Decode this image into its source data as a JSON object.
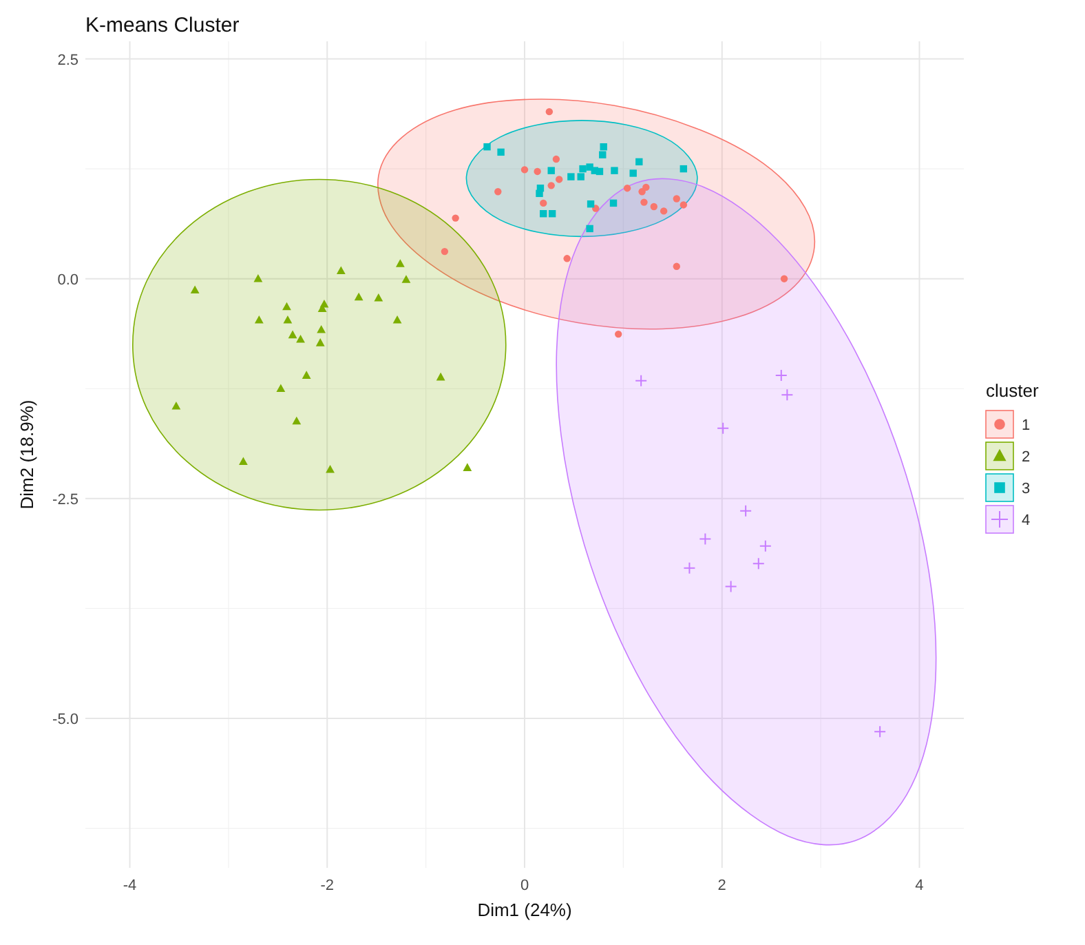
{
  "chart_data": {
    "type": "scatter",
    "title": "K-means Cluster",
    "xlabel": "Dim1 (24%)",
    "ylabel": "Dim2 (18.9%)",
    "legend_title": "cluster",
    "legend": "right",
    "grid": true,
    "xlim": [
      -4.45,
      4.45
    ],
    "ylim": [
      -6.7,
      2.7
    ],
    "xticks": [
      -4,
      -2,
      0,
      2,
      4
    ],
    "yticks": [
      {
        "value": 2.5,
        "label": "2.5"
      },
      {
        "value": 0,
        "label": "0.0"
      },
      {
        "value": -2.5,
        "label": "-2.5"
      },
      {
        "value": -5,
        "label": "-5.0"
      }
    ],
    "series": [
      {
        "type": "area",
        "color": "#f8766d",
        "x": [
          2.93,
          2.69,
          2.15,
          1.4,
          0.54,
          -0.29,
          -0.96,
          -1.38,
          -1.48,
          -1.24,
          -0.7,
          0.05,
          0.91,
          1.74,
          2.42,
          2.84
        ],
        "values": [
          0.31,
          -0.13,
          -0.44,
          -0.57,
          -0.5,
          -0.24,
          0.17,
          0.66,
          1.17,
          1.61,
          1.92,
          2.04,
          1.97,
          1.71,
          1.31,
          0.81
        ]
      },
      {
        "type": "area",
        "color": "#7cae00",
        "x": [
          -0.19,
          -0.33,
          -0.74,
          -1.36,
          -2.08,
          -2.8,
          -3.42,
          -3.83,
          -3.97,
          -3.83,
          -3.42,
          -2.8,
          -2.08,
          -1.36,
          -0.74,
          -0.33
        ],
        "values": [
          -0.75,
          -0.03,
          0.58,
          0.99,
          1.13,
          0.99,
          0.58,
          -0.03,
          -0.75,
          -1.47,
          -2.08,
          -2.49,
          -2.63,
          -2.49,
          -2.08,
          -1.47
        ]
      },
      {
        "type": "area",
        "color": "#00bfc4",
        "x": [
          1.75,
          1.66,
          1.41,
          1.03,
          0.58,
          0.13,
          -0.25,
          -0.5,
          -0.59,
          -0.5,
          -0.25,
          0.13,
          0.58,
          1.03,
          1.41,
          1.66
        ],
        "values": [
          1.14,
          1.39,
          1.61,
          1.75,
          1.8,
          1.75,
          1.61,
          1.39,
          1.14,
          0.89,
          0.67,
          0.53,
          0.48,
          0.53,
          0.67,
          0.89
        ]
      },
      {
        "type": "area",
        "color": "#c77cff",
        "x": [
          3.35,
          2.67,
          1.91,
          1.21,
          0.67,
          0.37,
          0.35,
          0.62,
          1.13,
          1.82,
          2.57,
          3.27,
          3.81,
          4.12,
          4.14,
          3.87
        ],
        "values": [
          -6.39,
          -6.34,
          -5.72,
          -4.64,
          -3.26,
          -1.78,
          -0.43,
          0.57,
          1.09,
          1.04,
          0.43,
          -0.66,
          -2.04,
          -3.52,
          -4.87,
          -5.87
        ]
      },
      {
        "name": "1",
        "marker": "circle",
        "color": "#f8766d",
        "x": [
          0.25,
          -0.7,
          -0.81,
          -0.27,
          0.0,
          0.13,
          0.32,
          0.27,
          0.35,
          0.19,
          0.43,
          0.95,
          1.04,
          1.19,
          1.23,
          1.21,
          1.31,
          1.41,
          1.54,
          1.61,
          1.54,
          2.63,
          0.72
        ],
        "values": [
          1.9,
          0.69,
          0.31,
          0.99,
          1.24,
          1.22,
          1.36,
          1.06,
          1.13,
          0.86,
          0.23,
          -0.63,
          1.03,
          0.99,
          1.04,
          0.87,
          0.82,
          0.77,
          0.91,
          0.84,
          0.14,
          0.0,
          0.8
        ]
      },
      {
        "name": "2",
        "marker": "triangle",
        "color": "#7cae00",
        "x": [
          -3.34,
          -3.53,
          -2.85,
          -2.7,
          -2.69,
          -2.41,
          -2.4,
          -2.35,
          -2.27,
          -2.47,
          -2.21,
          -2.31,
          -2.06,
          -2.05,
          -2.03,
          -1.86,
          -1.68,
          -1.48,
          -1.26,
          -1.2,
          -1.29,
          -0.85,
          -1.97,
          -0.58,
          -2.07
        ],
        "values": [
          -0.13,
          -1.45,
          -2.08,
          0.0,
          -0.47,
          -0.32,
          -0.47,
          -0.64,
          -0.69,
          -1.25,
          -1.1,
          -1.62,
          -0.58,
          -0.34,
          -0.29,
          0.09,
          -0.21,
          -0.22,
          0.17,
          -0.01,
          -0.47,
          -1.12,
          -2.17,
          -2.15,
          -0.73
        ]
      },
      {
        "name": "3",
        "marker": "square",
        "color": "#00bfc4",
        "x": [
          -0.38,
          -0.24,
          0.27,
          0.16,
          0.15,
          0.19,
          0.28,
          0.47,
          0.59,
          0.66,
          0.71,
          0.76,
          0.91,
          0.79,
          0.8,
          1.1,
          1.16,
          1.61,
          0.9,
          0.66,
          0.67,
          0.57
        ],
        "values": [
          1.5,
          1.44,
          1.23,
          1.03,
          0.97,
          0.74,
          0.74,
          1.16,
          1.25,
          1.27,
          1.23,
          1.22,
          1.23,
          1.41,
          1.5,
          1.2,
          1.33,
          1.25,
          0.86,
          0.57,
          0.85,
          1.16
        ]
      },
      {
        "name": "4",
        "marker": "cross",
        "color": "#c77cff",
        "x": [
          1.18,
          2.6,
          2.66,
          2.01,
          1.83,
          1.67,
          2.09,
          2.44,
          2.37,
          3.6,
          2.24
        ],
        "values": [
          -1.16,
          -1.1,
          -1.32,
          -1.7,
          -2.96,
          -3.29,
          -3.5,
          -3.04,
          -3.24,
          -5.15,
          -2.64
        ]
      }
    ]
  }
}
